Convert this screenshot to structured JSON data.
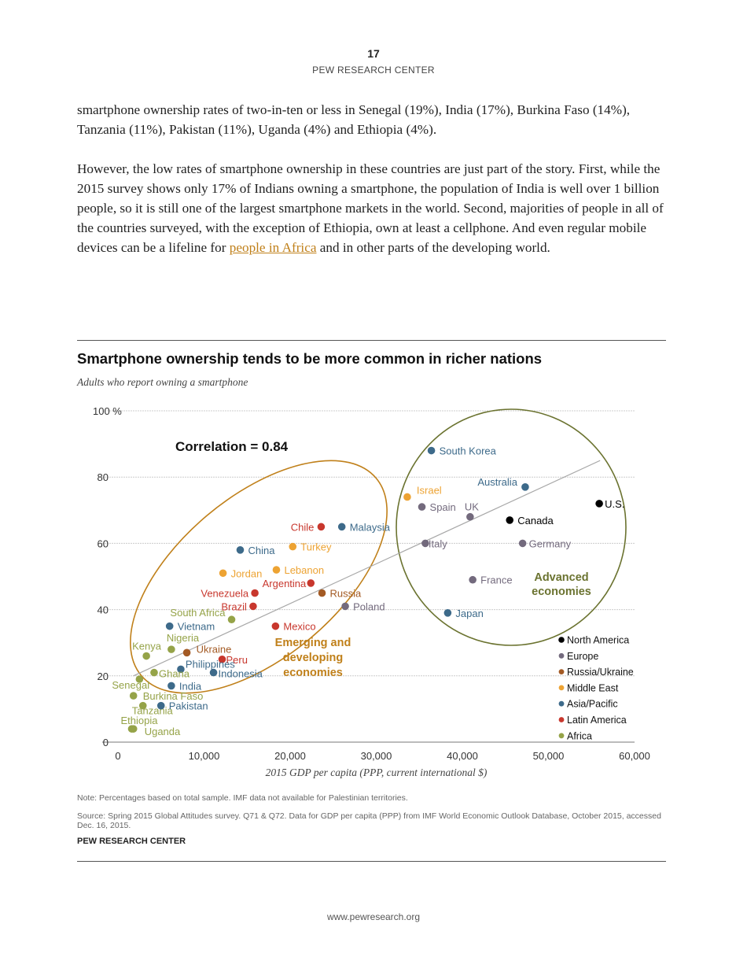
{
  "header": {
    "page_number": "17",
    "org": "PEW RESEARCH CENTER"
  },
  "body": {
    "para1": "smartphone ownership rates of two-in-ten or less in Senegal (19%), India (17%), Burkina Faso (14%), Tanzania (11%), Pakistan (11%), Uganda (4%) and Ethiopia (4%).",
    "para2_before": "However, the low rates of smartphone ownership in these countries are just part of the story. First, while the 2015 survey shows only 17% of Indians owning a smartphone, the population of India is well over 1 billion people, so it is still one of the largest smartphone markets in the world. Second, majorities of people in all of the countries surveyed, with the exception of Ethiopia, own at least a cellphone. And even regular mobile devices can be a lifeline for ",
    "para2_link": "people in Africa",
    "para2_after": " and in other parts of the developing world."
  },
  "chart_data": {
    "type": "scatter",
    "title": "Smartphone ownership tends to be more common in richer nations",
    "subtitle": "Adults who report owning a smartphone",
    "xlabel": "2015 GDP per capita (PPP, current international $)",
    "ylabel": "",
    "xlim": [
      0,
      60000
    ],
    "ylim": [
      0,
      100
    ],
    "x_ticks": [
      "0",
      "10,000",
      "20,000",
      "30,000",
      "40,000",
      "50,000",
      "60,000"
    ],
    "y_ticks": [
      "0",
      "20",
      "40",
      "60",
      "80",
      "100 %"
    ],
    "grid": true,
    "legend_placement": "bottom-right",
    "annotations": {
      "correlation": "Correlation = 0.84",
      "emerging": [
        "Emerging and",
        "developing",
        "economies"
      ],
      "advanced": [
        "Advanced",
        "economies"
      ]
    },
    "trend_line": [
      {
        "x": 1800,
        "y": 20
      },
      {
        "x": 56000,
        "y": 85
      }
    ],
    "regions": [
      {
        "name": "North America",
        "color": "#000000"
      },
      {
        "name": "Europe",
        "color": "#736a7d"
      },
      {
        "name": "Russia/Ukraine",
        "color": "#a35a24"
      },
      {
        "name": "Middle East",
        "color": "#eda333"
      },
      {
        "name": "Asia/Pacific",
        "color": "#3d6a8a"
      },
      {
        "name": "Latin America",
        "color": "#c8372d"
      },
      {
        "name": "Africa",
        "color": "#95a348"
      }
    ],
    "points": [
      {
        "label": "South Korea",
        "region": "Asia/Pacific",
        "x": 36400,
        "y": 88
      },
      {
        "label": "Australia",
        "region": "Asia/Pacific",
        "x": 47300,
        "y": 77
      },
      {
        "label": "U.S.",
        "region": "North America",
        "x": 55900,
        "y": 72
      },
      {
        "label": "Israel",
        "region": "Middle East",
        "x": 33600,
        "y": 74
      },
      {
        "label": "Spain",
        "region": "Europe",
        "x": 35300,
        "y": 71
      },
      {
        "label": "UK",
        "region": "Europe",
        "x": 40900,
        "y": 68
      },
      {
        "label": "Canada",
        "region": "North America",
        "x": 45500,
        "y": 67
      },
      {
        "label": "Italy",
        "region": "Europe",
        "x": 35700,
        "y": 60
      },
      {
        "label": "Germany",
        "region": "Europe",
        "x": 47000,
        "y": 60
      },
      {
        "label": "France",
        "region": "Europe",
        "x": 41200,
        "y": 49
      },
      {
        "label": "Japan",
        "region": "Asia/Pacific",
        "x": 38300,
        "y": 39
      },
      {
        "label": "Chile",
        "region": "Latin America",
        "x": 23600,
        "y": 65
      },
      {
        "label": "Malaysia",
        "region": "Asia/Pacific",
        "x": 26000,
        "y": 65
      },
      {
        "label": "China",
        "region": "Asia/Pacific",
        "x": 14200,
        "y": 58
      },
      {
        "label": "Turkey",
        "region": "Middle East",
        "x": 20300,
        "y": 59
      },
      {
        "label": "Jordan",
        "region": "Middle East",
        "x": 12200,
        "y": 51
      },
      {
        "label": "Lebanon",
        "region": "Middle East",
        "x": 18400,
        "y": 52
      },
      {
        "label": "Argentina",
        "region": "Latin America",
        "x": 22400,
        "y": 48
      },
      {
        "label": "Venezuela",
        "region": "Latin America",
        "x": 15900,
        "y": 45
      },
      {
        "label": "Russia",
        "region": "Russia/Ukraine",
        "x": 23700,
        "y": 45
      },
      {
        "label": "Brazil",
        "region": "Latin America",
        "x": 15700,
        "y": 41
      },
      {
        "label": "Poland",
        "region": "Europe",
        "x": 26400,
        "y": 41
      },
      {
        "label": "South Africa",
        "region": "Africa",
        "x": 13200,
        "y": 37
      },
      {
        "label": "Vietnam",
        "region": "Asia/Pacific",
        "x": 6000,
        "y": 35
      },
      {
        "label": "Mexico",
        "region": "Latin America",
        "x": 18300,
        "y": 35
      },
      {
        "label": "Nigeria",
        "region": "Africa",
        "x": 6200,
        "y": 28
      },
      {
        "label": "Kenya",
        "region": "Africa",
        "x": 3300,
        "y": 26
      },
      {
        "label": "Ukraine",
        "region": "Russia/Ukraine",
        "x": 8000,
        "y": 27
      },
      {
        "label": "Peru",
        "region": "Latin America",
        "x": 12100,
        "y": 25
      },
      {
        "label": "Philippines",
        "region": "Asia/Pacific",
        "x": 7300,
        "y": 22
      },
      {
        "label": "Indonesia",
        "region": "Asia/Pacific",
        "x": 11100,
        "y": 21
      },
      {
        "label": "Ghana",
        "region": "Africa",
        "x": 4200,
        "y": 21
      },
      {
        "label": "Senegal",
        "region": "Africa",
        "x": 2500,
        "y": 19
      },
      {
        "label": "India",
        "region": "Asia/Pacific",
        "x": 6200,
        "y": 17
      },
      {
        "label": "Burkina Faso",
        "region": "Africa",
        "x": 1800,
        "y": 14
      },
      {
        "label": "Tanzania",
        "region": "Africa",
        "x": 2900,
        "y": 11
      },
      {
        "label": "Pakistan",
        "region": "Asia/Pacific",
        "x": 5000,
        "y": 11
      },
      {
        "label": "Ethiopia",
        "region": "Africa",
        "x": 1600,
        "y": 4
      },
      {
        "label": "Uganda",
        "region": "Africa",
        "x": 1800,
        "y": 4
      }
    ]
  },
  "notes": {
    "note": "Note: Percentages based on total sample. IMF data not available for Palestinian territories.",
    "source": "Source: Spring 2015 Global Attitudes survey. Q71 & Q72. Data for GDP per capita (PPP) from IMF World Economic Outlook Database, October 2015, accessed Dec. 16, 2015.",
    "org": "PEW RESEARCH CENTER"
  },
  "footer": {
    "url": "www.pewresearch.org"
  }
}
